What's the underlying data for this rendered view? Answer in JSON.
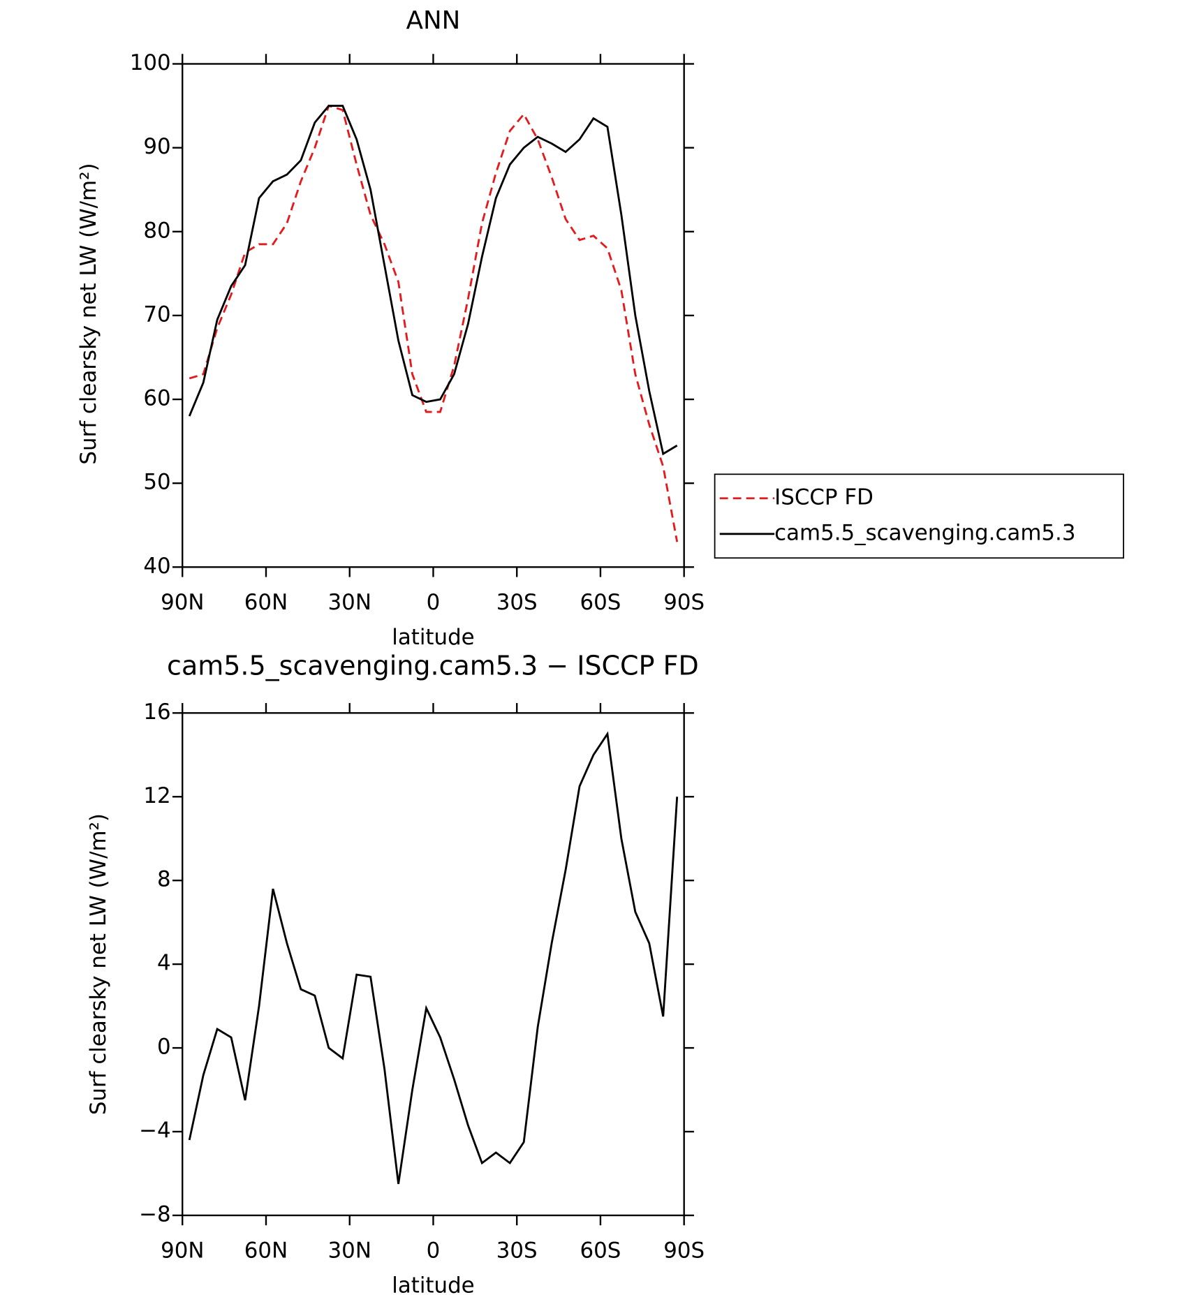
{
  "chart_data": [
    {
      "type": "line",
      "title": "ANN",
      "xlabel": "latitude",
      "ylabel": "Surf clearsky net LW (W/m²)",
      "x": [
        87.5,
        82.5,
        77.5,
        72.5,
        67.5,
        62.5,
        57.5,
        52.5,
        47.5,
        42.5,
        37.5,
        32.5,
        27.5,
        22.5,
        17.5,
        12.5,
        7.5,
        2.5,
        -2.5,
        -7.5,
        -12.5,
        -17.5,
        -22.5,
        -27.5,
        -32.5,
        -37.5,
        -42.5,
        -47.5,
        -52.5,
        -57.5,
        -62.5,
        -67.5,
        -72.5,
        -77.5,
        -82.5,
        -87.5
      ],
      "series": [
        {
          "name": "ISCCP FD",
          "color": "#e41a1c",
          "dashed": true,
          "values": [
            62.5,
            63,
            68.5,
            72.5,
            77.5,
            78.5,
            78.5,
            81,
            86,
            90,
            95,
            94.5,
            88,
            82,
            78.5,
            74,
            63,
            58.5,
            58.5,
            64,
            72,
            81,
            87,
            92,
            94,
            91,
            86.5,
            81.5,
            79,
            79.5,
            78,
            73,
            63,
            57,
            52,
            43
          ]
        },
        {
          "name": "cam5.5_scavenging.cam5.3",
          "color": "#000000",
          "dashed": false,
          "values": [
            58,
            62,
            69.5,
            73.5,
            76,
            84,
            86,
            86.8,
            88.5,
            93,
            95,
            95,
            91,
            85,
            76,
            67,
            60.5,
            59.7,
            60,
            63,
            69,
            77,
            84,
            88,
            90,
            91.3,
            90.5,
            89.5,
            91,
            93.5,
            92.5,
            82,
            70,
            61,
            53.5,
            54.5
          ]
        }
      ],
      "xlim": [
        90,
        -90
      ],
      "xticks": [
        {
          "value": 90,
          "label": "90N"
        },
        {
          "value": 60,
          "label": "60N"
        },
        {
          "value": 30,
          "label": "30N"
        },
        0,
        {
          "value": -30,
          "label": "30S"
        },
        {
          "value": -60,
          "label": "60S"
        },
        {
          "value": -90,
          "label": "90S"
        }
      ],
      "ylim": [
        40,
        100
      ],
      "yticks": [
        40,
        50,
        60,
        70,
        80,
        90,
        100
      ],
      "legend": "right"
    },
    {
      "type": "line",
      "title": "cam5.5_scavenging.cam5.3 − ISCCP FD",
      "xlabel": "latitude",
      "ylabel": "Surf clearsky net LW (W/m²)",
      "x": [
        87.5,
        82.5,
        77.5,
        72.5,
        67.5,
        62.5,
        57.5,
        52.5,
        47.5,
        42.5,
        37.5,
        32.5,
        27.5,
        22.5,
        17.5,
        12.5,
        7.5,
        2.5,
        -2.5,
        -7.5,
        -12.5,
        -17.5,
        -22.5,
        -27.5,
        -32.5,
        -37.5,
        -42.5,
        -47.5,
        -52.5,
        -57.5,
        -62.5,
        -67.5,
        -72.5,
        -77.5,
        -82.5,
        -87.5
      ],
      "series": [
        {
          "color": "#000000",
          "dashed": false,
          "values": [
            -4.4,
            -1.3,
            0.9,
            0.5,
            -2.5,
            2,
            7.6,
            5,
            2.8,
            2.5,
            0,
            -0.5,
            3.5,
            3.4,
            -1,
            -6.5,
            -2,
            1.9,
            0.5,
            -1.5,
            -3.7,
            -5.5,
            -5,
            -5.5,
            -4.5,
            1,
            5,
            8.5,
            12.5,
            14,
            15,
            10,
            6.5,
            5,
            1.5,
            12
          ]
        }
      ],
      "xlim": [
        90,
        -90
      ],
      "xticks": [
        {
          "value": 90,
          "label": "90N"
        },
        {
          "value": 60,
          "label": "60N"
        },
        {
          "value": 30,
          "label": "30N"
        },
        0,
        {
          "value": -30,
          "label": "30S"
        },
        {
          "value": -60,
          "label": "60S"
        },
        {
          "value": -90,
          "label": "90S"
        }
      ],
      "ylim": [
        -8,
        16
      ],
      "yticks": [
        {
          "value": -8,
          "label": "−8"
        },
        {
          "value": -4,
          "label": "−4"
        },
        0,
        4,
        8,
        12,
        16
      ]
    }
  ]
}
